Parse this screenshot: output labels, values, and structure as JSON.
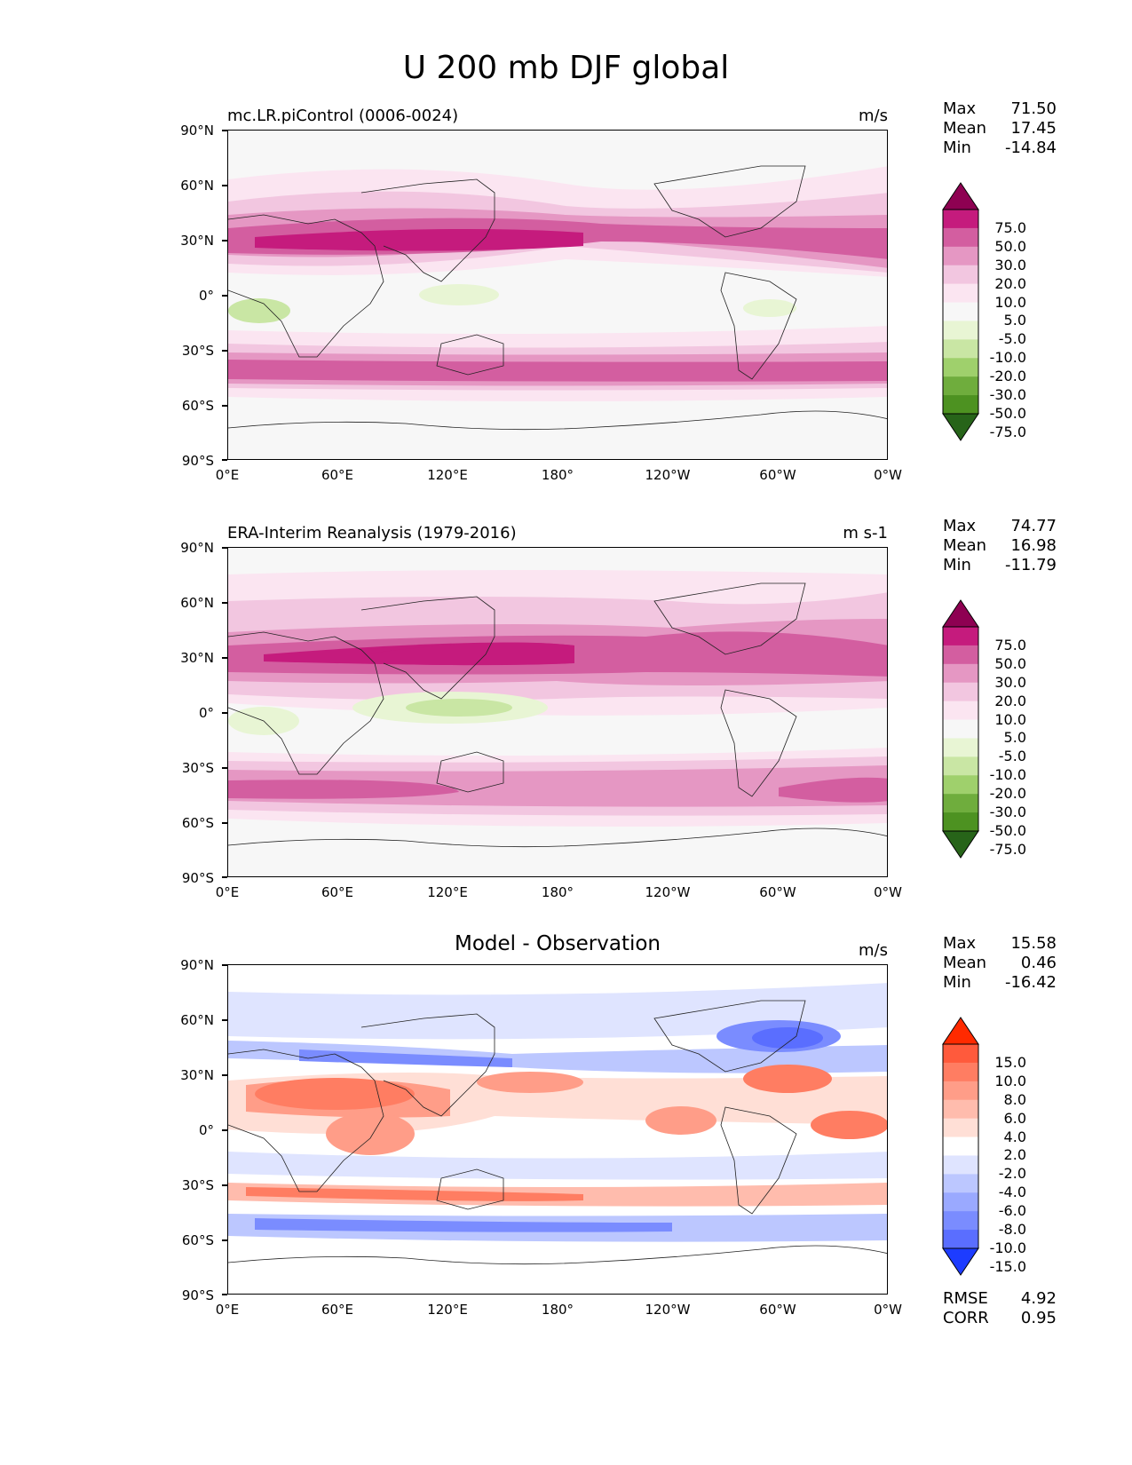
{
  "title": "U 200 mb DJF global",
  "lat_ticks": [
    "90°N",
    "60°N",
    "30°N",
    "0°",
    "30°S",
    "60°S",
    "90°S"
  ],
  "lon_ticks": [
    "0°E",
    "60°E",
    "120°E",
    "180°",
    "120°W",
    "60°W",
    "0°W"
  ],
  "panels": [
    {
      "title": "mc.LR.piControl (0006-0024)",
      "units": "m/s",
      "stats": {
        "max_label": "Max",
        "max": "71.50",
        "mean_label": "Mean",
        "mean": "17.45",
        "min_label": "Min",
        "min": "-14.84"
      },
      "levels": [
        "75.0",
        "50.0",
        "30.0",
        "20.0",
        "10.0",
        "5.0",
        "-5.0",
        "-10.0",
        "-20.0",
        "-30.0",
        "-50.0",
        "-75.0"
      ],
      "colors": [
        "#8e0152",
        "#c51b7d",
        "#d35ea0",
        "#e597c3",
        "#f2c6e0",
        "#fbe5f1",
        "#f7f7f7",
        "#e8f5d4",
        "#c9e6a4",
        "#9fd06c",
        "#6fad3d",
        "#4d9221",
        "#276419"
      ]
    },
    {
      "title": "ERA-Interim Reanalysis (1979-2016)",
      "units": "m s-1",
      "stats": {
        "max_label": "Max",
        "max": "74.77",
        "mean_label": "Mean",
        "mean": "16.98",
        "min_label": "Min",
        "min": "-11.79"
      },
      "levels": [
        "75.0",
        "50.0",
        "30.0",
        "20.0",
        "10.0",
        "5.0",
        "-5.0",
        "-10.0",
        "-20.0",
        "-30.0",
        "-50.0",
        "-75.0"
      ],
      "colors": [
        "#8e0152",
        "#c51b7d",
        "#d35ea0",
        "#e597c3",
        "#f2c6e0",
        "#fbe5f1",
        "#f7f7f7",
        "#e8f5d4",
        "#c9e6a4",
        "#9fd06c",
        "#6fad3d",
        "#4d9221",
        "#276419"
      ]
    },
    {
      "title": "Model - Observation",
      "units": "m/s",
      "stats": {
        "max_label": "Max",
        "max": "15.58",
        "mean_label": "Mean",
        "mean": "0.46",
        "min_label": "Min",
        "min": "-16.42"
      },
      "levels": [
        "15.0",
        "10.0",
        "8.0",
        "6.0",
        "4.0",
        "2.0",
        "-2.0",
        "-4.0",
        "-6.0",
        "-8.0",
        "-10.0",
        "-15.0"
      ],
      "colors": [
        "#ff2a00",
        "#ff5a3c",
        "#ff7d62",
        "#ff9d88",
        "#ffbcad",
        "#ffdfd6",
        "#ffffff",
        "#dfe4ff",
        "#bcc7ff",
        "#9aa9ff",
        "#7a8cff",
        "#5a6eff",
        "#1d3cff"
      ],
      "rmse_label": "RMSE",
      "rmse": "4.92",
      "corr_label": "CORR",
      "corr": "0.95"
    }
  ]
}
